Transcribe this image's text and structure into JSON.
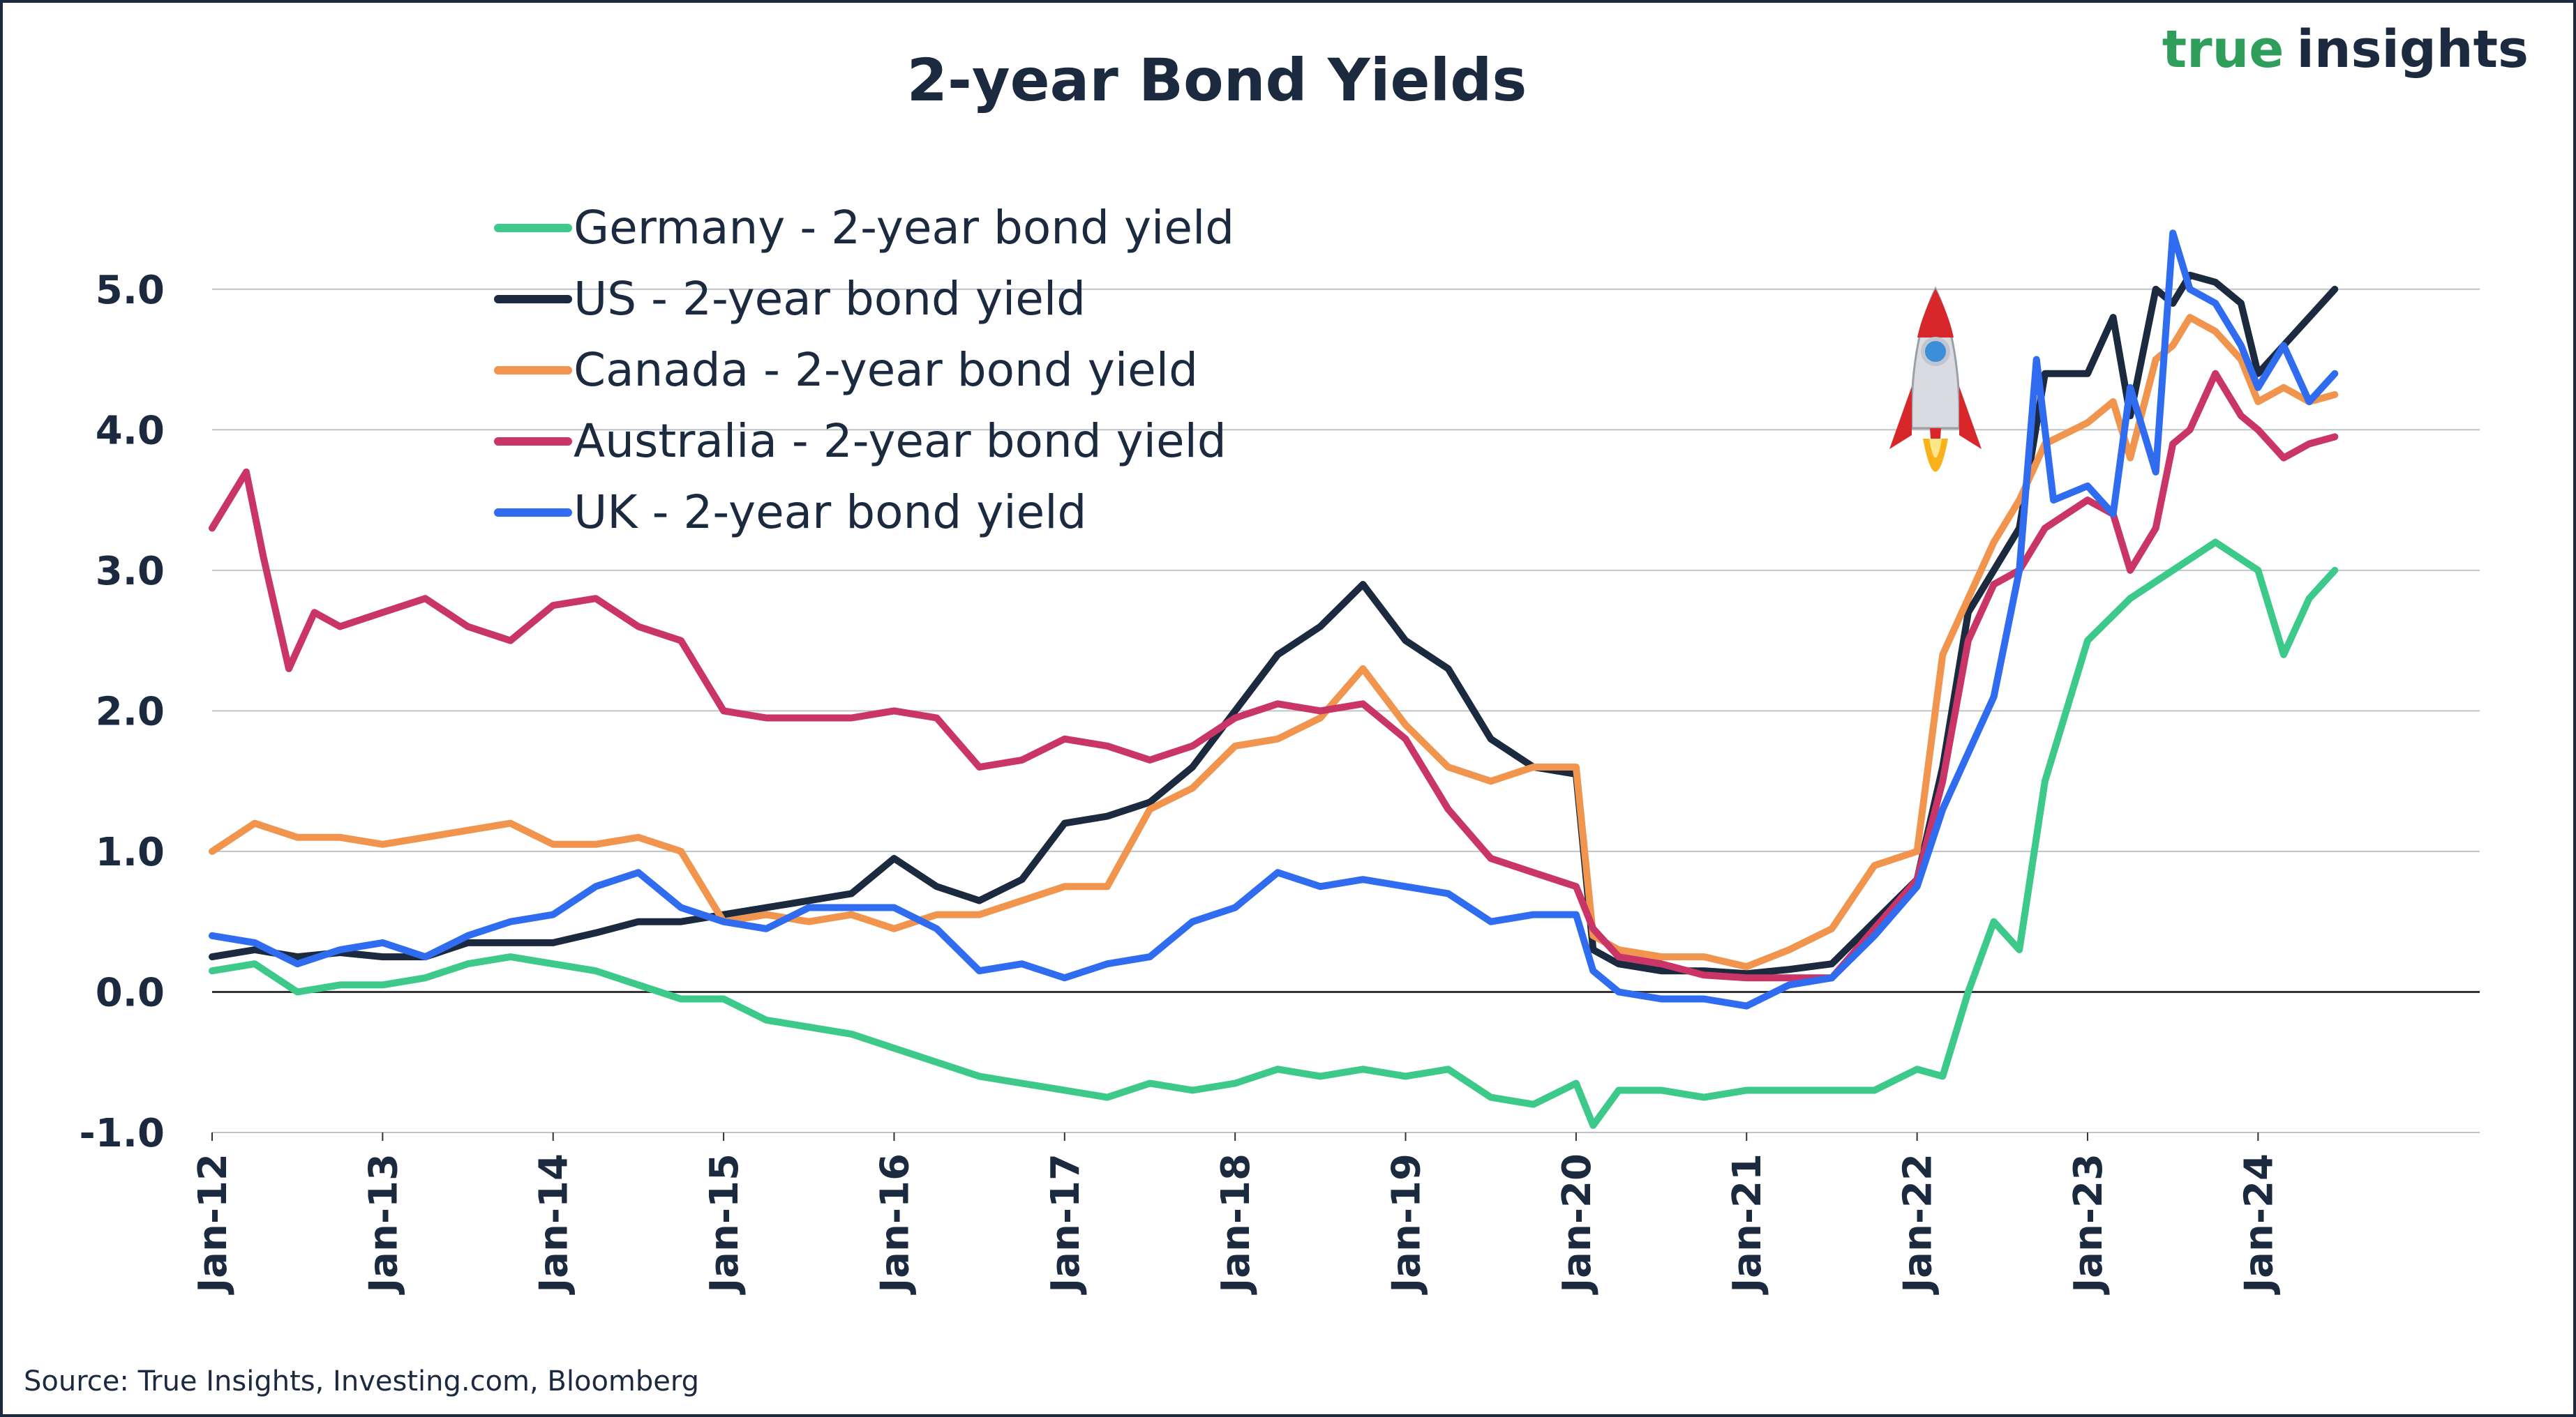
{
  "brand": {
    "part1": "true",
    "part2": "insights"
  },
  "source": "Source: True Insights, Investing.com, Bloomberg",
  "chart_data": {
    "type": "line",
    "title": "2-year Bond Yields",
    "xlabel": "",
    "ylabel": "",
    "ylim": [
      -1.0,
      5.5
    ],
    "yticks": [
      5.0,
      4.0,
      3.0,
      2.0,
      1.0,
      0.0,
      -1.0
    ],
    "ytick_labels": [
      "5.0",
      "4.0",
      "3.0",
      "2.0",
      "1.0",
      "0.0",
      "-1.0"
    ],
    "xlim": [
      2012.0,
      2025.3
    ],
    "xticks": [
      2012,
      2013,
      2014,
      2015,
      2016,
      2017,
      2018,
      2019,
      2020,
      2021,
      2022,
      2023,
      2024
    ],
    "xtick_labels": [
      "Jan-12",
      "Jan-13",
      "Jan-14",
      "Jan-15",
      "Jan-16",
      "Jan-17",
      "Jan-18",
      "Jan-19",
      "Jan-20",
      "Jan-21",
      "Jan-22",
      "Jan-23",
      "Jan-24"
    ],
    "grid": true,
    "legend_position": "top-left",
    "annotation": "rocket",
    "series": [
      {
        "name": "Germany - 2-year bond yield",
        "color": "#3cc98a",
        "x": [
          2012.0,
          2012.25,
          2012.5,
          2012.75,
          2013.0,
          2013.25,
          2013.5,
          2013.75,
          2014.0,
          2014.25,
          2014.5,
          2014.75,
          2015.0,
          2015.25,
          2015.5,
          2015.75,
          2016.0,
          2016.25,
          2016.5,
          2016.75,
          2017.0,
          2017.25,
          2017.5,
          2017.75,
          2018.0,
          2018.25,
          2018.5,
          2018.75,
          2019.0,
          2019.25,
          2019.5,
          2019.75,
          2020.0,
          2020.1,
          2020.25,
          2020.5,
          2020.75,
          2021.0,
          2021.25,
          2021.5,
          2021.75,
          2022.0,
          2022.15,
          2022.3,
          2022.45,
          2022.6,
          2022.75,
          2023.0,
          2023.25,
          2023.5,
          2023.75,
          2024.0,
          2024.15,
          2024.3,
          2024.45
        ],
        "values": [
          0.15,
          0.2,
          0.0,
          0.05,
          0.05,
          0.1,
          0.2,
          0.25,
          0.2,
          0.15,
          0.05,
          -0.05,
          -0.05,
          -0.2,
          -0.25,
          -0.3,
          -0.4,
          -0.5,
          -0.6,
          -0.65,
          -0.7,
          -0.75,
          -0.65,
          -0.7,
          -0.65,
          -0.55,
          -0.6,
          -0.55,
          -0.6,
          -0.55,
          -0.75,
          -0.8,
          -0.65,
          -0.95,
          -0.7,
          -0.7,
          -0.75,
          -0.7,
          -0.7,
          -0.7,
          -0.7,
          -0.55,
          -0.6,
          0.0,
          0.5,
          0.3,
          1.5,
          2.5,
          2.8,
          3.0,
          3.2,
          3.0,
          2.4,
          2.8,
          3.0
        ]
      },
      {
        "name": "US - 2-year bond yield",
        "color": "#1c2a3f",
        "x": [
          2012.0,
          2012.25,
          2012.5,
          2012.75,
          2013.0,
          2013.25,
          2013.5,
          2013.75,
          2014.0,
          2014.25,
          2014.5,
          2014.75,
          2015.0,
          2015.25,
          2015.5,
          2015.75,
          2016.0,
          2016.25,
          2016.5,
          2016.75,
          2017.0,
          2017.25,
          2017.5,
          2017.75,
          2018.0,
          2018.25,
          2018.5,
          2018.75,
          2019.0,
          2019.25,
          2019.5,
          2019.75,
          2020.0,
          2020.1,
          2020.25,
          2020.5,
          2020.75,
          2021.0,
          2021.25,
          2021.5,
          2021.75,
          2022.0,
          2022.15,
          2022.3,
          2022.45,
          2022.6,
          2022.75,
          2023.0,
          2023.15,
          2023.25,
          2023.4,
          2023.5,
          2023.6,
          2023.75,
          2023.9,
          2024.0,
          2024.15,
          2024.3,
          2024.45
        ],
        "values": [
          0.25,
          0.3,
          0.25,
          0.28,
          0.25,
          0.25,
          0.35,
          0.35,
          0.35,
          0.42,
          0.5,
          0.5,
          0.55,
          0.6,
          0.65,
          0.7,
          0.95,
          0.75,
          0.65,
          0.8,
          1.2,
          1.25,
          1.35,
          1.6,
          2.0,
          2.4,
          2.6,
          2.9,
          2.5,
          2.3,
          1.8,
          1.6,
          1.55,
          0.3,
          0.2,
          0.15,
          0.15,
          0.13,
          0.16,
          0.2,
          0.5,
          0.8,
          1.6,
          2.7,
          3.0,
          3.3,
          4.4,
          4.4,
          4.8,
          4.1,
          5.0,
          4.9,
          5.1,
          5.05,
          4.9,
          4.4,
          4.6,
          4.8,
          5.0
        ]
      },
      {
        "name": "Canada - 2-year bond yield",
        "color": "#f0944e",
        "x": [
          2012.0,
          2012.25,
          2012.5,
          2012.75,
          2013.0,
          2013.25,
          2013.5,
          2013.75,
          2014.0,
          2014.25,
          2014.5,
          2014.75,
          2015.0,
          2015.25,
          2015.5,
          2015.75,
          2016.0,
          2016.25,
          2016.5,
          2016.75,
          2017.0,
          2017.25,
          2017.5,
          2017.75,
          2018.0,
          2018.25,
          2018.5,
          2018.75,
          2019.0,
          2019.25,
          2019.5,
          2019.75,
          2020.0,
          2020.1,
          2020.25,
          2020.5,
          2020.75,
          2021.0,
          2021.25,
          2021.5,
          2021.75,
          2022.0,
          2022.15,
          2022.3,
          2022.45,
          2022.6,
          2022.75,
          2023.0,
          2023.15,
          2023.25,
          2023.4,
          2023.5,
          2023.6,
          2023.75,
          2023.9,
          2024.0,
          2024.15,
          2024.3,
          2024.45
        ],
        "values": [
          1.0,
          1.2,
          1.1,
          1.1,
          1.05,
          1.1,
          1.15,
          1.2,
          1.05,
          1.05,
          1.1,
          1.0,
          0.5,
          0.55,
          0.5,
          0.55,
          0.45,
          0.55,
          0.55,
          0.65,
          0.75,
          0.75,
          1.3,
          1.45,
          1.75,
          1.8,
          1.95,
          2.3,
          1.9,
          1.6,
          1.5,
          1.6,
          1.6,
          0.4,
          0.3,
          0.25,
          0.25,
          0.18,
          0.3,
          0.45,
          0.9,
          1.0,
          2.4,
          2.8,
          3.2,
          3.5,
          3.9,
          4.05,
          4.2,
          3.8,
          4.5,
          4.6,
          4.8,
          4.7,
          4.5,
          4.2,
          4.3,
          4.2,
          4.25
        ]
      },
      {
        "name": "Australia - 2-year bond yield",
        "color": "#c93566",
        "x": [
          2012.0,
          2012.1,
          2012.2,
          2012.3,
          2012.45,
          2012.6,
          2012.75,
          2013.0,
          2013.25,
          2013.5,
          2013.75,
          2014.0,
          2014.25,
          2014.5,
          2014.75,
          2015.0,
          2015.25,
          2015.5,
          2015.75,
          2016.0,
          2016.25,
          2016.5,
          2016.75,
          2017.0,
          2017.25,
          2017.5,
          2017.75,
          2018.0,
          2018.25,
          2018.5,
          2018.75,
          2019.0,
          2019.25,
          2019.5,
          2019.75,
          2020.0,
          2020.1,
          2020.25,
          2020.5,
          2020.75,
          2021.0,
          2021.25,
          2021.5,
          2021.75,
          2022.0,
          2022.15,
          2022.3,
          2022.45,
          2022.6,
          2022.75,
          2023.0,
          2023.15,
          2023.25,
          2023.4,
          2023.5,
          2023.6,
          2023.75,
          2023.9,
          2024.0,
          2024.15,
          2024.3,
          2024.45
        ],
        "values": [
          3.3,
          3.5,
          3.7,
          3.1,
          2.3,
          2.7,
          2.6,
          2.7,
          2.8,
          2.6,
          2.5,
          2.75,
          2.8,
          2.6,
          2.5,
          2.0,
          1.95,
          1.95,
          1.95,
          2.0,
          1.95,
          1.6,
          1.65,
          1.8,
          1.75,
          1.65,
          1.75,
          1.95,
          2.05,
          2.0,
          2.05,
          1.8,
          1.3,
          0.95,
          0.85,
          0.75,
          0.45,
          0.25,
          0.2,
          0.12,
          0.1,
          0.1,
          0.1,
          0.45,
          0.8,
          1.5,
          2.5,
          2.9,
          3.0,
          3.3,
          3.5,
          3.4,
          3.0,
          3.3,
          3.9,
          4.0,
          4.4,
          4.1,
          4.0,
          3.8,
          3.9,
          3.95
        ]
      },
      {
        "name": "UK - 2-year bond yield",
        "color": "#2f6cf0",
        "x": [
          2012.0,
          2012.25,
          2012.5,
          2012.75,
          2013.0,
          2013.25,
          2013.5,
          2013.75,
          2014.0,
          2014.25,
          2014.5,
          2014.75,
          2015.0,
          2015.25,
          2015.5,
          2015.75,
          2016.0,
          2016.25,
          2016.5,
          2016.75,
          2017.0,
          2017.25,
          2017.5,
          2017.75,
          2018.0,
          2018.25,
          2018.5,
          2018.75,
          2019.0,
          2019.25,
          2019.5,
          2019.75,
          2020.0,
          2020.1,
          2020.25,
          2020.5,
          2020.75,
          2021.0,
          2021.25,
          2021.5,
          2021.75,
          2022.0,
          2022.15,
          2022.3,
          2022.45,
          2022.6,
          2022.7,
          2022.8,
          2023.0,
          2023.15,
          2023.25,
          2023.4,
          2023.5,
          2023.6,
          2023.75,
          2023.9,
          2024.0,
          2024.15,
          2024.3,
          2024.45
        ],
        "values": [
          0.4,
          0.35,
          0.2,
          0.3,
          0.35,
          0.25,
          0.4,
          0.5,
          0.55,
          0.75,
          0.85,
          0.6,
          0.5,
          0.45,
          0.6,
          0.6,
          0.6,
          0.45,
          0.15,
          0.2,
          0.1,
          0.2,
          0.25,
          0.5,
          0.6,
          0.85,
          0.75,
          0.8,
          0.75,
          0.7,
          0.5,
          0.55,
          0.55,
          0.15,
          0.0,
          -0.05,
          -0.05,
          -0.1,
          0.05,
          0.1,
          0.4,
          0.75,
          1.3,
          1.7,
          2.1,
          3.0,
          4.5,
          3.5,
          3.6,
          3.4,
          4.3,
          3.7,
          5.4,
          5.0,
          4.9,
          4.6,
          4.3,
          4.6,
          4.2,
          4.4
        ]
      }
    ]
  }
}
